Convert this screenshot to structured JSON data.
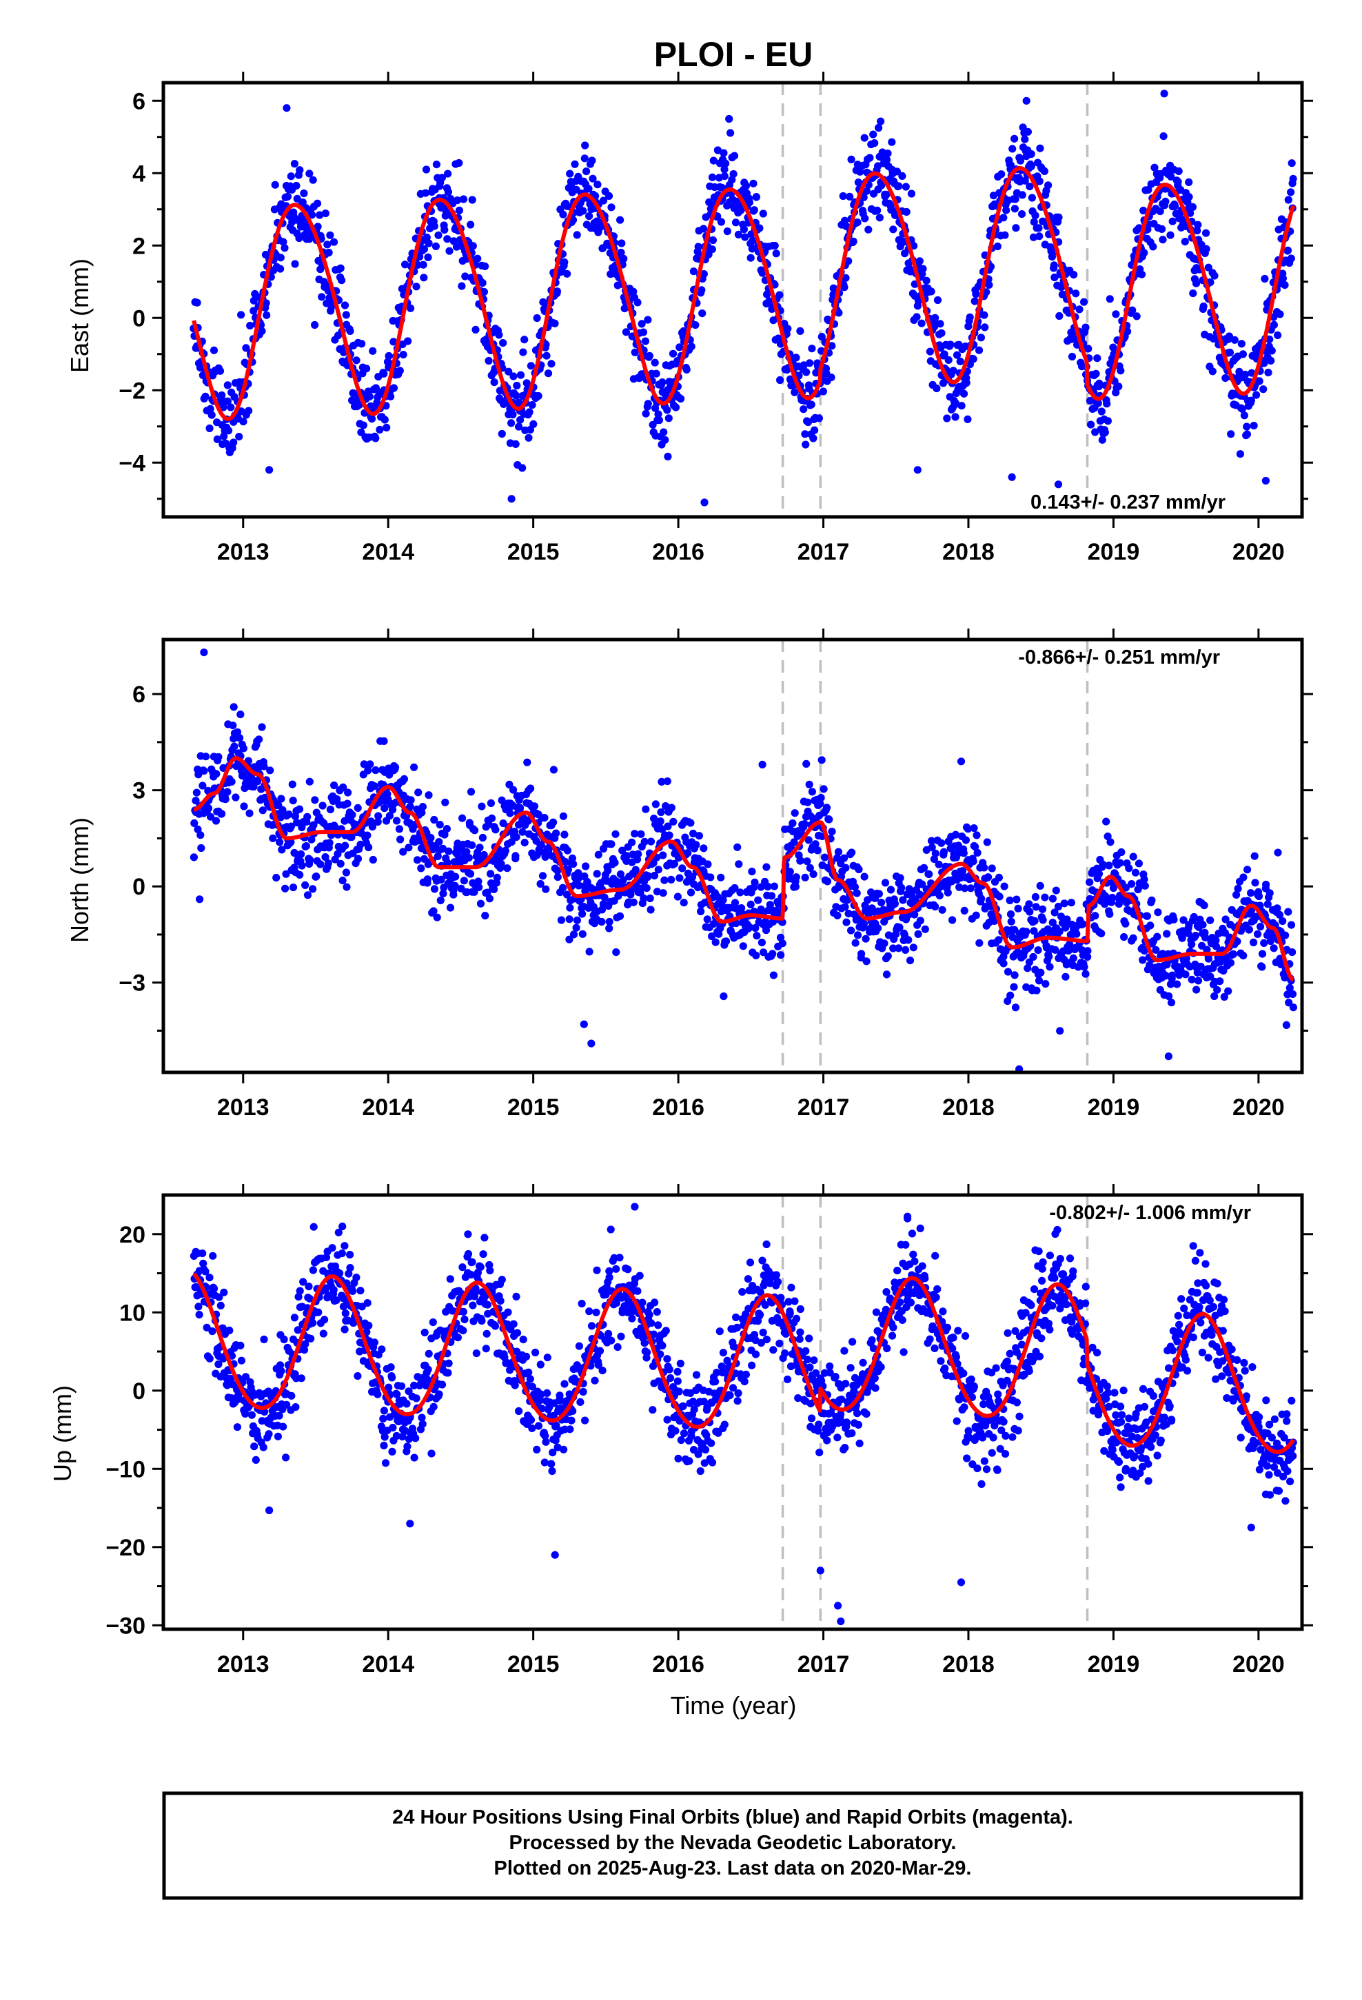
{
  "title": "PLOI - EU",
  "colors": {
    "data_points": "#0000ff",
    "model_fit": "#ff0000",
    "event_lines": "#bfbfbf",
    "frame": "#000000"
  },
  "chart_data": [
    {
      "type": "scatter",
      "component": "east",
      "ylabel": "East (mm)",
      "xlabel": "",
      "xlim": [
        2012.45,
        2020.3
      ],
      "ylim": [
        -5.5,
        6.5
      ],
      "yticks": [
        -4,
        -2,
        0,
        2,
        4,
        6
      ],
      "yticks_minor": [
        -5,
        -3,
        -1,
        1,
        3,
        5
      ],
      "xticks": [
        2013,
        2014,
        2015,
        2016,
        2017,
        2018,
        2019,
        2020
      ],
      "rate_label": "0.143+/- 0.237 mm/yr",
      "rate_label_position": "bottom-right",
      "event_lines": [
        2016.72,
        2016.98,
        2018.82
      ],
      "data_span": [
        2012.66,
        2020.24
      ],
      "model": {
        "offset": 0.8,
        "trend": 0.143,
        "annual_amp": 2.9,
        "annual_peak": 2013.38,
        "semiannual_amp": 0.25,
        "semiannual_peak": 2013.2,
        "steps": [
          {
            "t": 2016.98,
            "d": 0.3
          },
          {
            "t": 2018.82,
            "d": -0.6
          }
        ]
      },
      "scatter_sd": 0.65,
      "outliers": [
        [
          2013.18,
          -4.2
        ],
        [
          2014.85,
          -5.0
        ],
        [
          2016.18,
          -5.1
        ],
        [
          2017.65,
          -4.2
        ],
        [
          2018.3,
          -4.4
        ],
        [
          2018.62,
          -4.6
        ],
        [
          2018.4,
          6.0
        ],
        [
          2019.35,
          6.2
        ],
        [
          2013.3,
          5.8
        ],
        [
          2016.35,
          5.5
        ],
        [
          2020.05,
          -4.5
        ]
      ]
    },
    {
      "type": "scatter",
      "component": "north",
      "ylabel": "North (mm)",
      "xlabel": "",
      "xlim": [
        2012.45,
        2020.3
      ],
      "ylim": [
        -5.8,
        7.7
      ],
      "yticks": [
        -3,
        0,
        3,
        6
      ],
      "yticks_minor": [
        -4.5,
        -1.5,
        1.5,
        4.5
      ],
      "xticks": [
        2013,
        2014,
        2015,
        2016,
        2017,
        2018,
        2019,
        2020
      ],
      "rate_label": "-0.866+/- 0.251 mm/yr",
      "rate_label_position": "top-right",
      "event_lines": [
        2016.72,
        2016.98,
        2018.82
      ],
      "data_span": [
        2012.66,
        2020.24
      ],
      "model_curve": [
        [
          2012.66,
          2.4
        ],
        [
          2012.8,
          2.9
        ],
        [
          2012.95,
          4.0
        ],
        [
          2013.1,
          3.5
        ],
        [
          2013.3,
          1.5
        ],
        [
          2013.55,
          1.7
        ],
        [
          2013.75,
          1.7
        ],
        [
          2014.0,
          3.1
        ],
        [
          2014.15,
          2.3
        ],
        [
          2014.35,
          0.6
        ],
        [
          2014.6,
          0.6
        ],
        [
          2014.95,
          2.3
        ],
        [
          2015.1,
          1.4
        ],
        [
          2015.3,
          -0.3
        ],
        [
          2015.6,
          -0.1
        ],
        [
          2015.95,
          1.4
        ],
        [
          2016.1,
          0.6
        ],
        [
          2016.3,
          -1.1
        ],
        [
          2016.5,
          -0.9
        ],
        [
          2016.72,
          -1.0
        ],
        [
          2016.73,
          0.9
        ],
        [
          2016.98,
          2.0
        ],
        [
          2017.1,
          0.2
        ],
        [
          2017.3,
          -1.0
        ],
        [
          2017.55,
          -0.8
        ],
        [
          2017.95,
          0.7
        ],
        [
          2018.1,
          0.1
        ],
        [
          2018.3,
          -1.9
        ],
        [
          2018.55,
          -1.6
        ],
        [
          2018.82,
          -1.7
        ],
        [
          2018.83,
          -0.6
        ],
        [
          2018.98,
          0.3
        ],
        [
          2019.1,
          -0.3
        ],
        [
          2019.3,
          -2.3
        ],
        [
          2019.55,
          -2.1
        ],
        [
          2019.75,
          -2.1
        ],
        [
          2019.95,
          -0.6
        ],
        [
          2020.1,
          -1.3
        ],
        [
          2020.24,
          -2.9
        ]
      ],
      "scatter_sd": 0.75,
      "outliers": [
        [
          2012.73,
          7.3
        ],
        [
          2012.7,
          -0.4
        ],
        [
          2015.35,
          -4.3
        ],
        [
          2015.4,
          -4.9
        ],
        [
          2017.95,
          3.9
        ],
        [
          2018.35,
          -5.7
        ],
        [
          2019.38,
          -5.3
        ],
        [
          2016.58,
          3.8
        ]
      ]
    },
    {
      "type": "scatter",
      "component": "up",
      "ylabel": "Up (mm)",
      "xlabel": "Time (year)",
      "xlim": [
        2012.45,
        2020.3
      ],
      "ylim": [
        -30.5,
        25
      ],
      "yticks": [
        -30,
        -20,
        -10,
        0,
        10,
        20
      ],
      "yticks_minor": [
        -25,
        -15,
        -5,
        5,
        15
      ],
      "xticks": [
        2013,
        2014,
        2015,
        2016,
        2017,
        2018,
        2019,
        2020
      ],
      "rate_label": "-0.802+/- 1.006 mm/yr",
      "rate_label_position": "top-right",
      "event_lines": [
        2016.72,
        2016.98,
        2018.82
      ],
      "data_span": [
        2012.66,
        2020.24
      ],
      "model": {
        "offset": 3.1,
        "trend": -0.802,
        "annual_amp": 8.6,
        "annual_peak": 2013.62,
        "semiannual_amp": 0.6,
        "semiannual_peak": 2013.6,
        "steps": [
          {
            "t": 2016.98,
            "d": 3.0
          },
          {
            "t": 2018.82,
            "d": -3.0
          }
        ]
      },
      "scatter_sd": 3.1,
      "outliers": [
        [
          2017.1,
          -27.5
        ],
        [
          2017.12,
          -29.5
        ],
        [
          2016.98,
          -23.0
        ],
        [
          2017.95,
          -24.5
        ],
        [
          2014.15,
          -17.0
        ],
        [
          2015.15,
          -21.0
        ],
        [
          2019.95,
          -17.5
        ],
        [
          2015.7,
          23.5
        ],
        [
          2017.58,
          22.0
        ],
        [
          2014.55,
          20.0
        ],
        [
          2019.55,
          18.5
        ],
        [
          2013.18,
          -15.3
        ]
      ]
    }
  ],
  "footer": {
    "line1": "24 Hour Positions Using Final Orbits (blue) and Rapid Orbits (magenta).",
    "line2": "Processed by the Nevada Geodetic Laboratory.",
    "line3": "Plotted on 2025-Aug-23. Last data on 2020-Mar-29."
  }
}
